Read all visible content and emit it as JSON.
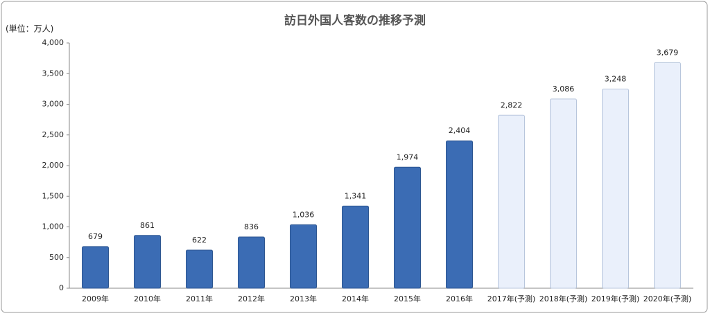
{
  "chart_data": {
    "type": "bar",
    "title": "訪日外国人客数の推移予測",
    "unit_label": "(単位：万人)",
    "categories": [
      "2009年",
      "2010年",
      "2011年",
      "2012年",
      "2013年",
      "2014年",
      "2015年",
      "2016年",
      "2017年(予測)",
      "2018年(予測)",
      "2019年(予測)",
      "2020年(予測)"
    ],
    "values": [
      679,
      861,
      622,
      836,
      1036,
      1341,
      1974,
      2404,
      2822,
      3086,
      3248,
      3679
    ],
    "value_labels": [
      "679",
      "861",
      "622",
      "836",
      "1,036",
      "1,341",
      "1,974",
      "2,404",
      "2,822",
      "3,086",
      "3,248",
      "3,679"
    ],
    "colors": [
      "#3b6cb4",
      "#3b6cb4",
      "#3b6cb4",
      "#3b6cb4",
      "#3b6cb4",
      "#3b6cb4",
      "#3b6cb4",
      "#3b6cb4",
      "#eaf0fb",
      "#eaf0fb",
      "#eaf0fb",
      "#eaf0fb"
    ],
    "ylim": [
      0,
      4000
    ],
    "yticks": [
      0,
      500,
      {
        "value": 1000,
        "label": "1,000"
      },
      {
        "value": 1500,
        "label": "1,500"
      },
      {
        "value": 2000,
        "label": "2,000"
      },
      {
        "value": 2500,
        "label": "2,500"
      },
      {
        "value": 3000,
        "label": "3,000"
      },
      {
        "value": 3500,
        "label": "3,500"
      },
      {
        "value": 4000,
        "label": "4,000"
      }
    ]
  }
}
